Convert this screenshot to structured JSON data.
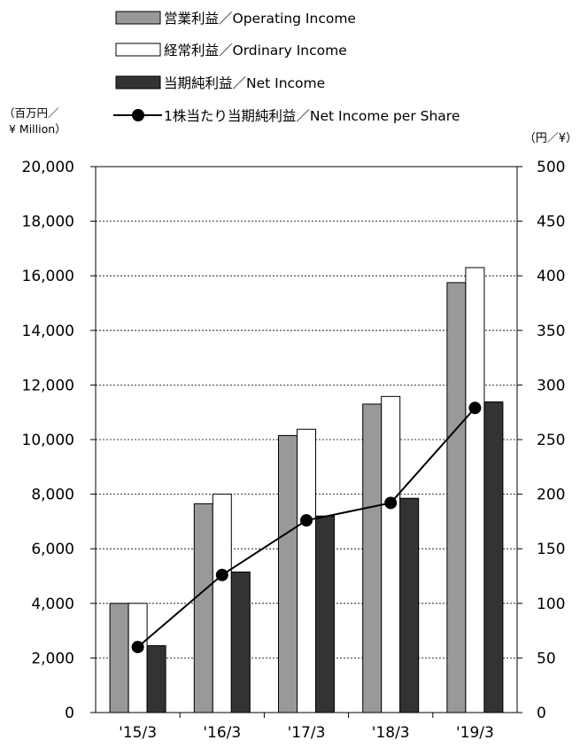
{
  "chart_data": {
    "type": "bar",
    "categories": [
      "'15/3",
      "'16/3",
      "'17/3",
      "'18/3",
      "'19/3"
    ],
    "series": [
      {
        "name": "営業利益／Operating Income",
        "kind": "bar",
        "axis": "left",
        "color": "#999999",
        "values": [
          4000,
          7650,
          10150,
          11300,
          15750
        ]
      },
      {
        "name": "経常利益／Ordinary Income",
        "kind": "bar",
        "axis": "left",
        "color": "#ffffff",
        "values": [
          4000,
          8000,
          10380,
          11580,
          16300
        ]
      },
      {
        "name": "当期純利益／Net Income",
        "kind": "bar",
        "axis": "left",
        "color": "#333333",
        "values": [
          2450,
          5150,
          7200,
          7850,
          11380
        ]
      },
      {
        "name": "1株当たり当期純利益／Net Income per Share",
        "kind": "line",
        "axis": "right",
        "color": "#000000",
        "values": [
          60,
          126,
          176,
          192,
          279
        ]
      }
    ],
    "left_axis": {
      "unit_label_line1": "（百万円／",
      "unit_label_line2": "¥ Million）",
      "ylim": [
        0,
        20000
      ],
      "ticks": [
        "0",
        "2,000",
        "4,000",
        "6,000",
        "8,000",
        "10,000",
        "12,000",
        "14,000",
        "16,000",
        "18,000",
        "20,000"
      ]
    },
    "right_axis": {
      "unit_label": "（円／¥）",
      "ylim": [
        0,
        500
      ],
      "ticks": [
        "0",
        "50",
        "100",
        "150",
        "200",
        "250",
        "300",
        "350",
        "400",
        "450",
        "500"
      ]
    },
    "grid": true,
    "grid_style": "dotted",
    "legend_position": "top"
  }
}
